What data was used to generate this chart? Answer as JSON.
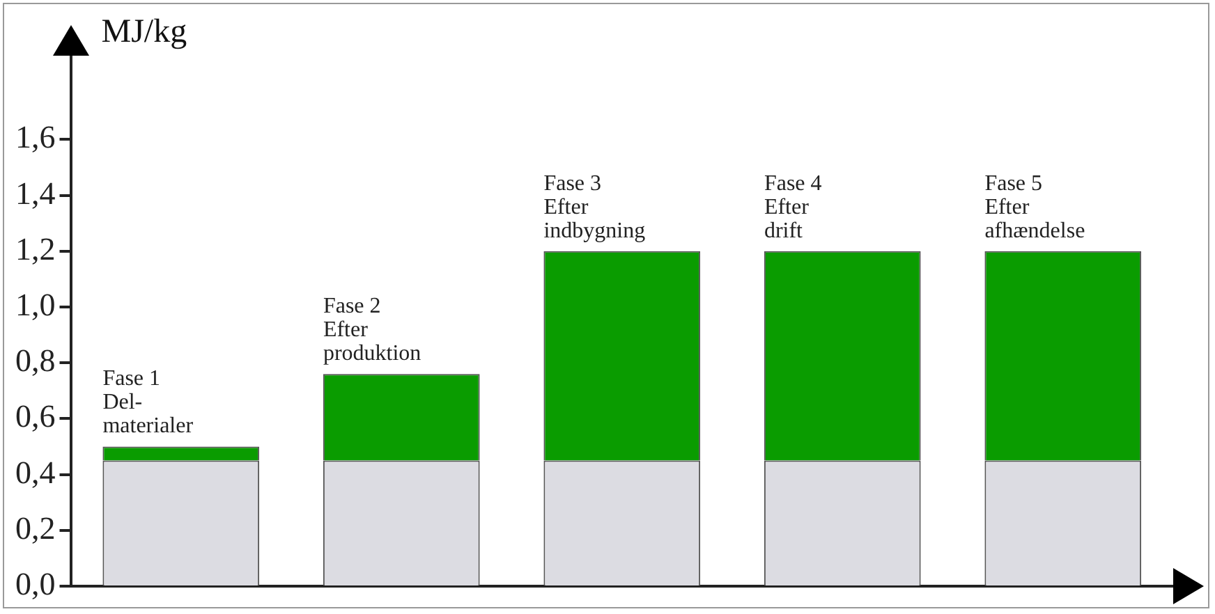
{
  "chart_data": {
    "type": "bar",
    "stacked": true,
    "ylabel": "MJ/kg",
    "categories": [
      "Fase 1\nDel-\nmaterialer",
      "Fase 2\nEfter\nproduktion",
      "Fase 3\nEfter\nindbygning",
      "Fase 4\nEfter\ndrift",
      "Fase 5\nEfter\nafhændelse"
    ],
    "series": [
      {
        "color": "#dcdce2",
        "values": [
          0.45,
          0.45,
          0.45,
          0.45,
          0.45
        ]
      },
      {
        "color": "#0a9c00",
        "values": [
          0.05,
          0.31,
          0.75,
          0.75,
          0.75
        ]
      }
    ],
    "ylim": [
      0,
      1.9
    ],
    "yticks": [
      {
        "value": 0,
        "label": "0,0"
      },
      {
        "value": 0.2,
        "label": "0,2"
      },
      {
        "value": 0.4,
        "label": "0,4"
      },
      {
        "value": 0.6,
        "label": "0,6"
      },
      {
        "value": 0.8,
        "label": "0,8"
      },
      {
        "value": 1.0,
        "label": "1,0"
      },
      {
        "value": 1.2,
        "label": "1,2"
      },
      {
        "value": 1.4,
        "label": "1,4"
      },
      {
        "value": 1.6,
        "label": "1,6"
      }
    ],
    "grid": false,
    "legend": false
  }
}
